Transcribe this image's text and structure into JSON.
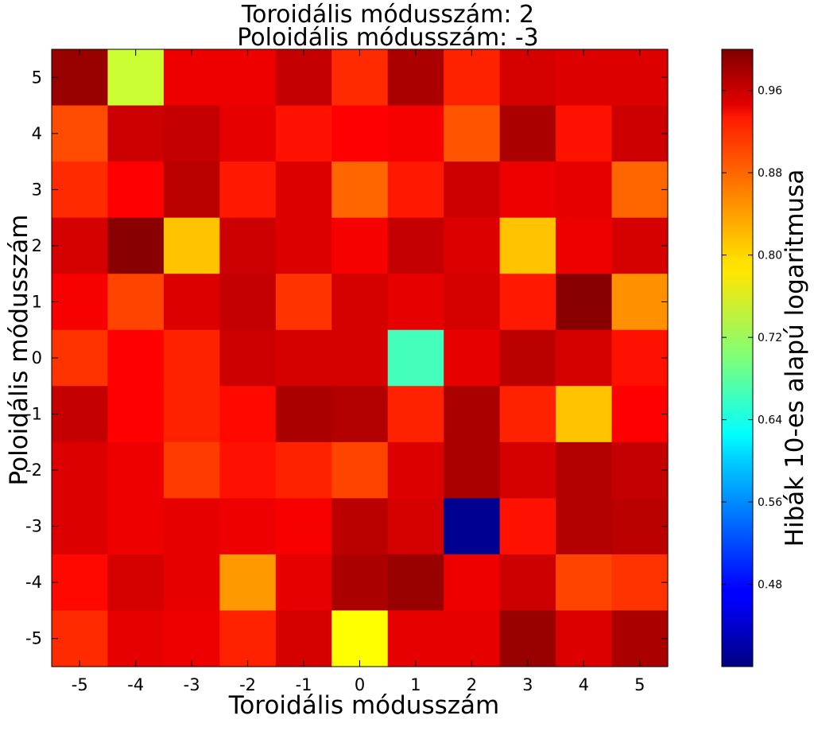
{
  "chart_data": {
    "type": "heatmap",
    "title": [
      "Toroidális módusszám: 2",
      "Poloidális módusszám: -3"
    ],
    "xlabel": "Toroidális módusszám",
    "ylabel": "Poloidális módusszám",
    "colorbar_label": "Hibák 10-es alapú logaritmusa",
    "colormap": "jet",
    "x": [
      -5,
      -4,
      -3,
      -2,
      -1,
      0,
      1,
      2,
      3,
      4,
      5
    ],
    "y": [
      5,
      4,
      3,
      2,
      1,
      0,
      -1,
      -2,
      -3,
      -4,
      -5
    ],
    "xlim": [
      -5.5,
      5.5
    ],
    "ylim": [
      -5.5,
      5.5
    ],
    "color_range": [
      0.4,
      1.0
    ],
    "colorbar_ticks": [
      0.48,
      0.56,
      0.64,
      0.72,
      0.8,
      0.88,
      0.96
    ],
    "values": [
      [
        0.985,
        0.745,
        0.935,
        0.935,
        0.96,
        0.9,
        0.975,
        0.905,
        0.95,
        0.945,
        0.945
      ],
      [
        0.88,
        0.955,
        0.96,
        0.94,
        0.915,
        0.925,
        0.93,
        0.875,
        0.975,
        0.915,
        0.955
      ],
      [
        0.9,
        0.925,
        0.965,
        0.91,
        0.945,
        0.865,
        0.91,
        0.955,
        0.935,
        0.94,
        0.865
      ],
      [
        0.95,
        0.995,
        0.81,
        0.955,
        0.945,
        0.93,
        0.96,
        0.945,
        0.81,
        0.935,
        0.95
      ],
      [
        0.93,
        0.885,
        0.945,
        0.96,
        0.895,
        0.95,
        0.94,
        0.95,
        0.91,
        0.995,
        0.84
      ],
      [
        0.895,
        0.925,
        0.905,
        0.955,
        0.95,
        0.95,
        0.665,
        0.94,
        0.965,
        0.95,
        0.915
      ],
      [
        0.96,
        0.925,
        0.905,
        0.92,
        0.975,
        0.97,
        0.905,
        0.975,
        0.905,
        0.81,
        0.925
      ],
      [
        0.945,
        0.935,
        0.89,
        0.915,
        0.905,
        0.885,
        0.945,
        0.975,
        0.95,
        0.97,
        0.96
      ],
      [
        0.945,
        0.935,
        0.94,
        0.935,
        0.93,
        0.965,
        0.95,
        0.41,
        0.915,
        0.97,
        0.965
      ],
      [
        0.92,
        0.95,
        0.94,
        0.835,
        0.94,
        0.975,
        0.985,
        0.935,
        0.955,
        0.885,
        0.895
      ],
      [
        0.9,
        0.94,
        0.935,
        0.905,
        0.95,
        0.775,
        0.94,
        0.94,
        0.985,
        0.945,
        0.975
      ]
    ]
  }
}
